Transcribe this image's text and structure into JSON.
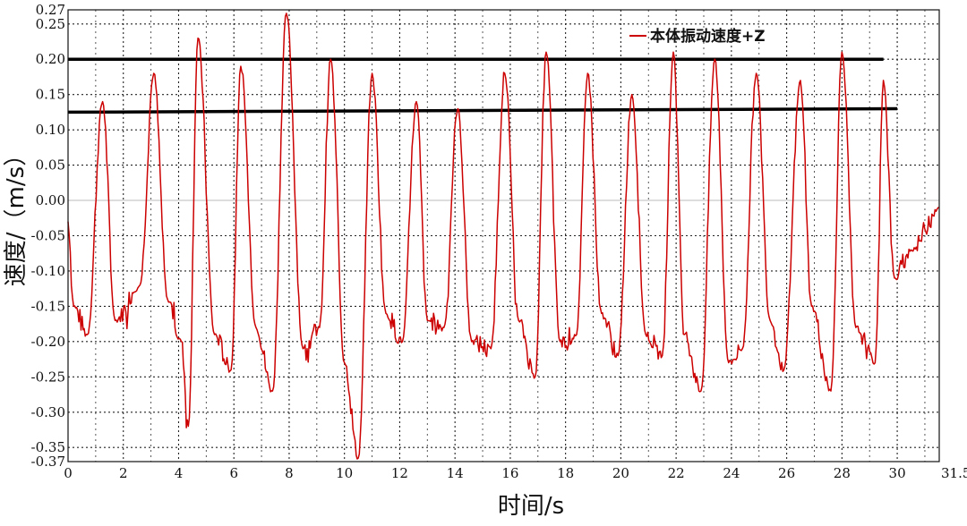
{
  "chart_data": {
    "type": "line",
    "title": "",
    "xlabel": "时间/s",
    "ylabel": "速度/（m/s）",
    "xlim": [
      0,
      31.52
    ],
    "ylim": [
      -0.37,
      0.27
    ],
    "x_ticks": [
      0,
      2,
      4,
      6,
      8,
      10,
      12,
      14,
      16,
      18,
      20,
      22,
      24,
      26,
      28,
      30
    ],
    "x_tick_labels": [
      "0",
      "2",
      "4",
      "6",
      "8",
      "10",
      "12",
      "14",
      "16",
      "18",
      "20",
      "22",
      "24",
      "26",
      "28",
      "30"
    ],
    "x_end_label": "31.52",
    "y_ticks": [
      0.27,
      0.25,
      0.2,
      0.15,
      0.1,
      0.05,
      0.0,
      -0.05,
      -0.1,
      -0.15,
      -0.2,
      -0.25,
      -0.3,
      -0.35,
      -0.37
    ],
    "y_tick_labels": [
      "0.27",
      "0.25",
      "0.20",
      "0.15",
      "0.10",
      "0.05",
      "0.00",
      "-0.05",
      "-0.10",
      "-0.15",
      "-0.20",
      "-0.25",
      "-0.30",
      "-0.35",
      "-0.37"
    ],
    "grid": true,
    "grid_style": "dotted",
    "legend_position": "top-right",
    "series": [
      {
        "name": "本体振动速度+Z",
        "color": "#cc0000",
        "peaks": [
          [
            1.25,
            0.14
          ],
          [
            3.1,
            0.18
          ],
          [
            4.7,
            0.23
          ],
          [
            6.25,
            0.19
          ],
          [
            7.9,
            0.265
          ],
          [
            9.5,
            0.2
          ],
          [
            11.0,
            0.18
          ],
          [
            12.6,
            0.14
          ],
          [
            14.1,
            0.13
          ],
          [
            15.8,
            0.18
          ],
          [
            17.3,
            0.21
          ],
          [
            18.8,
            0.18
          ],
          [
            20.4,
            0.15
          ],
          [
            21.9,
            0.21
          ],
          [
            23.4,
            0.2
          ],
          [
            24.9,
            0.18
          ],
          [
            26.5,
            0.17
          ],
          [
            28.0,
            0.21
          ],
          [
            29.5,
            0.17
          ]
        ],
        "troughs": [
          [
            0.2,
            -0.15
          ],
          [
            0.7,
            -0.19
          ],
          [
            1.7,
            -0.17
          ],
          [
            2.6,
            -0.12
          ],
          [
            3.6,
            -0.14
          ],
          [
            4.1,
            -0.2
          ],
          [
            4.35,
            -0.32
          ],
          [
            5.3,
            -0.19
          ],
          [
            5.9,
            -0.24
          ],
          [
            6.8,
            -0.18
          ],
          [
            7.4,
            -0.27
          ],
          [
            8.5,
            -0.21
          ],
          [
            9.1,
            -0.18
          ],
          [
            10.0,
            -0.23
          ],
          [
            10.5,
            -0.365
          ],
          [
            11.5,
            -0.16
          ],
          [
            12.1,
            -0.2
          ],
          [
            13.0,
            -0.17
          ],
          [
            13.6,
            -0.18
          ],
          [
            14.6,
            -0.2
          ],
          [
            15.3,
            -0.21
          ],
          [
            16.3,
            -0.17
          ],
          [
            16.9,
            -0.25
          ],
          [
            17.8,
            -0.2
          ],
          [
            18.4,
            -0.19
          ],
          [
            19.3,
            -0.16
          ],
          [
            19.9,
            -0.22
          ],
          [
            20.9,
            -0.19
          ],
          [
            21.5,
            -0.22
          ],
          [
            22.3,
            -0.19
          ],
          [
            22.9,
            -0.27
          ],
          [
            23.9,
            -0.23
          ],
          [
            24.4,
            -0.21
          ],
          [
            25.4,
            -0.17
          ],
          [
            25.9,
            -0.24
          ],
          [
            26.9,
            -0.15
          ],
          [
            27.6,
            -0.27
          ],
          [
            28.5,
            -0.18
          ],
          [
            29.2,
            -0.23
          ],
          [
            29.9,
            -0.11
          ],
          [
            30.5,
            -0.07
          ],
          [
            31.52,
            -0.01
          ]
        ]
      },
      {
        "name": "",
        "color": "#000000",
        "role": "reference-line-upper",
        "x": [
          0,
          29.5
        ],
        "y": [
          0.2,
          0.2
        ]
      },
      {
        "name": "",
        "color": "#000000",
        "role": "reference-line-lower",
        "x": [
          0,
          30.0
        ],
        "y": [
          0.125,
          0.13
        ]
      }
    ]
  }
}
